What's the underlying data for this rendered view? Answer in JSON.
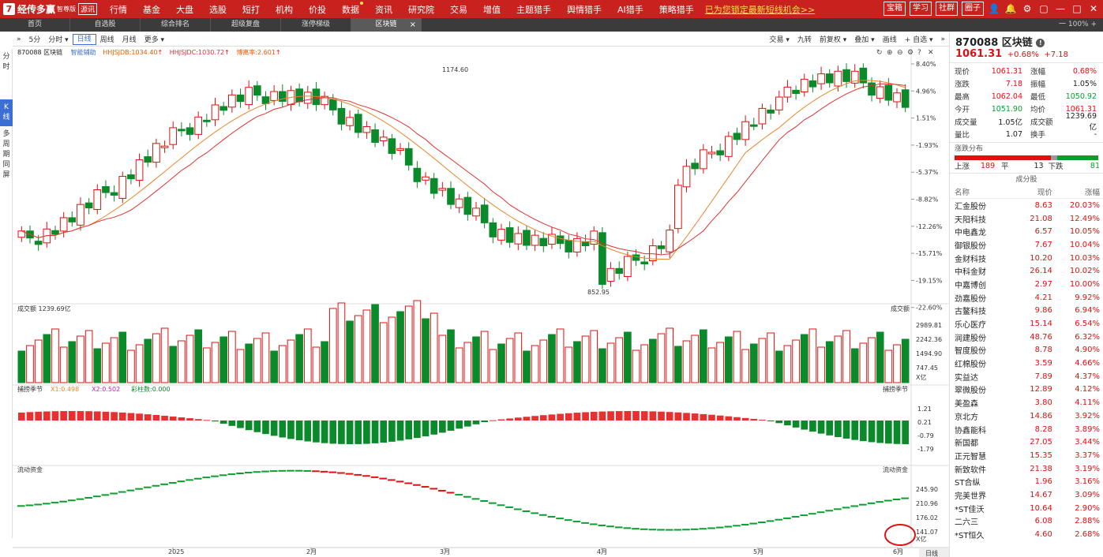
{
  "app": {
    "name": "经传多赢",
    "edition": "智尊版",
    "hot_badge": "源讯"
  },
  "topmenu": [
    {
      "label": "行情"
    },
    {
      "label": "基金"
    },
    {
      "label": "大盘"
    },
    {
      "label": "选股"
    },
    {
      "label": "短打"
    },
    {
      "label": "机构"
    },
    {
      "label": "价投"
    },
    {
      "label": "数据",
      "dot": true
    },
    {
      "label": "资讯"
    },
    {
      "label": "研究院"
    },
    {
      "label": "交易"
    },
    {
      "label": "增值"
    },
    {
      "label": "主题猎手"
    },
    {
      "label": "舆情猎手"
    },
    {
      "label": "AI猎手"
    },
    {
      "label": "策略猎手"
    }
  ],
  "promo": "已为您锁定最新短线机会>>",
  "topright": {
    "buttons": [
      "宝箱",
      "学习",
      "社群",
      "圈子"
    ],
    "icons": [
      "user-icon",
      "bell-icon",
      "settings-icon",
      "window-icon",
      "minimize-icon",
      "maximize-icon",
      "close-icon"
    ]
  },
  "tabs": [
    {
      "label": "首页"
    },
    {
      "label": "自选股"
    },
    {
      "label": "综合排名"
    },
    {
      "label": "超级复盘"
    },
    {
      "label": "涨停梯级"
    },
    {
      "label": "区块链",
      "active": true
    }
  ],
  "tabbar_right": "一  100%  +",
  "leftnav": [
    {
      "label": "分时"
    },
    {
      "label": "K线",
      "active": true
    },
    {
      "label": "多周期同屏"
    }
  ],
  "toolbar": {
    "left": [
      {
        "label": "»"
      },
      {
        "label": "5分"
      },
      {
        "label": "分时 ▾"
      },
      {
        "label": "日线",
        "active": true
      },
      {
        "label": "周线"
      },
      {
        "label": "月线"
      },
      {
        "label": "更多 ▾"
      }
    ],
    "right": [
      {
        "label": "交易 ▾"
      },
      {
        "label": "九转"
      },
      {
        "label": "前复权 ▾"
      },
      {
        "label": "叠加 ▾"
      },
      {
        "label": "画线"
      },
      {
        "label": "+ 自选 ▾"
      },
      {
        "label": "»"
      }
    ]
  },
  "info": {
    "code_name": "870088 区块链",
    "assist": "智能辅助",
    "ma1": "HHJSJDB:1034.40",
    "ma2": "HHJSJDC:1030.72",
    "ma3": "博离率:2.601"
  },
  "chart_icons": [
    "refresh-icon",
    "zoom-in-icon",
    "zoom-out-icon",
    "settings-icon",
    "help-icon",
    "close-icon"
  ],
  "chart_data": [
    {
      "type": "candlestick",
      "title": "870088 区块链 日线",
      "y_ticks_pct": [
        "8.40%",
        "4.96%",
        "1.51%",
        "-1.93%",
        "-5.37%",
        "-8.82%",
        "-12.26%",
        "-15.71%",
        "-19.15%",
        "-22.60%"
      ],
      "x_labels": [
        "2025",
        "2月",
        "3月",
        "4月",
        "5月",
        "6月"
      ],
      "annotations": [
        {
          "text": "1174.60"
        },
        {
          "text": "852.95"
        }
      ],
      "series": [
        {
          "name": "HHJSJDB",
          "last": 1034.4,
          "color": "#e8862a"
        },
        {
          "name": "HHJSJDC",
          "last": 1030.72,
          "color": "#e03030"
        }
      ]
    },
    {
      "type": "bar",
      "title": "成交额",
      "value_label": "1239.69亿",
      "y_ticks": [
        "2989.81",
        "2242.36",
        "1494.90",
        "747.45"
      ],
      "unit": "X亿",
      "legend": "成交额"
    },
    {
      "type": "bar",
      "title": "捕捞季节",
      "x1": "X1:0.498",
      "x2": "X2:0.502",
      "bars": "彩柱数:0.000",
      "y_ticks": [
        "1.21",
        "0.21",
        "-0.79",
        "-1.79"
      ],
      "legend": "捕捞季节"
    },
    {
      "type": "line",
      "title": "流动资金",
      "y_ticks": [
        "245.90",
        "210.96",
        "176.02",
        "141.07"
      ],
      "unit": "X亿",
      "legend": "流动资金"
    }
  ],
  "period_label": "日线",
  "right_panel": {
    "title": "870088 区块链",
    "price": "1061.31",
    "pct": "+0.68%",
    "chg": "+7.18",
    "quotes": [
      {
        "k": "现价",
        "v": "1061.31",
        "vc": "red",
        "k2": "涨幅",
        "v2": "0.68%",
        "v2c": "red"
      },
      {
        "k": "涨跌",
        "v": "7.18",
        "vc": "red",
        "k2": "振幅",
        "v2": "1.05%",
        "v2c": ""
      },
      {
        "k": "最高",
        "v": "1062.04",
        "vc": "red",
        "k2": "最低",
        "v2": "1050.92",
        "v2c": "grn"
      },
      {
        "k": "今开",
        "v": "1051.90",
        "vc": "grn",
        "k2": "均价",
        "v2": "1061.31",
        "v2c": "red"
      },
      {
        "k": "成交量",
        "v": "1.05亿",
        "vc": "",
        "k2": "成交额",
        "v2": "1239.69亿",
        "v2c": ""
      },
      {
        "k": "量比",
        "v": "1.07",
        "vc": "",
        "k2": "换手",
        "v2": "-",
        "v2c": ""
      }
    ],
    "dist_title": "涨跌分布",
    "dist": {
      "up_label": "上涨",
      "up": "189",
      "flat_label": "平",
      "flat": "13",
      "down_label": "下跌",
      "down": "81",
      "up_n": 189,
      "flat_n": 13,
      "down_n": 81
    },
    "constituents_title": "成分股",
    "table_headers": {
      "name": "名称",
      "price": "现价",
      "change": "涨幅"
    },
    "stocks": [
      {
        "name": "汇金股份",
        "price": "8.63",
        "change": "20.03%"
      },
      {
        "name": "天阳科技",
        "price": "21.08",
        "change": "12.49%"
      },
      {
        "name": "中电鑫龙",
        "price": "6.57",
        "change": "10.05%"
      },
      {
        "name": "御银股份",
        "price": "7.67",
        "change": "10.04%"
      },
      {
        "name": "金财科技",
        "price": "10.20",
        "change": "10.03%"
      },
      {
        "name": "中科金财",
        "price": "26.14",
        "change": "10.02%"
      },
      {
        "name": "中嘉博创",
        "price": "2.97",
        "change": "10.00%"
      },
      {
        "name": "劲嘉股份",
        "price": "4.21",
        "change": "9.92%"
      },
      {
        "name": "古鳌科技",
        "price": "9.86",
        "change": "6.94%"
      },
      {
        "name": "乐心医疗",
        "price": "15.14",
        "change": "6.54%"
      },
      {
        "name": "润建股份",
        "price": "48.76",
        "change": "6.32%"
      },
      {
        "name": "智度股份",
        "price": "8.78",
        "change": "4.90%"
      },
      {
        "name": "红棉股份",
        "price": "3.59",
        "change": "4.66%"
      },
      {
        "name": "实益达",
        "price": "7.89",
        "change": "4.37%"
      },
      {
        "name": "翠微股份",
        "price": "12.89",
        "change": "4.12%"
      },
      {
        "name": "美盈森",
        "price": "3.80",
        "change": "4.11%"
      },
      {
        "name": "京北方",
        "price": "14.86",
        "change": "3.92%"
      },
      {
        "name": "协鑫能科",
        "price": "8.28",
        "change": "3.89%"
      },
      {
        "name": "新国都",
        "price": "27.05",
        "change": "3.44%"
      },
      {
        "name": "正元智慧",
        "price": "15.35",
        "change": "3.37%"
      },
      {
        "name": "新致软件",
        "price": "21.38",
        "change": "3.19%"
      },
      {
        "name": "ST合纵",
        "price": "1.96",
        "change": "3.16%"
      },
      {
        "name": "完美世界",
        "price": "14.67",
        "change": "3.09%"
      },
      {
        "name": "*ST佳沃",
        "price": "10.64",
        "change": "2.90%"
      },
      {
        "name": "二六三",
        "price": "6.08",
        "change": "2.88%"
      },
      {
        "name": "*ST恒久",
        "price": "4.60",
        "change": "2.68%"
      }
    ]
  }
}
